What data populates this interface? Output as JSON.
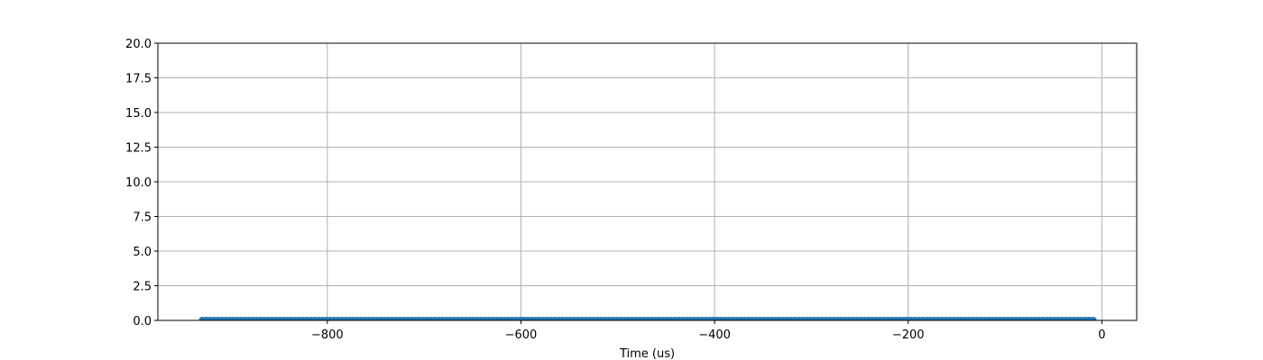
{
  "chart_data": {
    "type": "scatter",
    "title": "",
    "xlabel": "Time (us)",
    "ylabel": "",
    "xlim": [
      -975,
      36
    ],
    "ylim": [
      0,
      20
    ],
    "xticks": [
      -800,
      -600,
      -400,
      -200,
      0
    ],
    "yticks": [
      0,
      2.5,
      5,
      7.5,
      10,
      12.5,
      15,
      17.5,
      20
    ],
    "xtick_labels": [
      "−800",
      "−600",
      "−400",
      "−200",
      "0"
    ],
    "ytick_labels": [
      "0.0",
      "2.5",
      "5.0",
      "7.5",
      "10.0",
      "12.5",
      "15.0",
      "17.5",
      "20.0"
    ],
    "grid": true,
    "series": [
      {
        "color": "#1f77b4",
        "x_start": -929,
        "x_end": -9,
        "x_step": 4,
        "y_value": 0
      }
    ]
  }
}
